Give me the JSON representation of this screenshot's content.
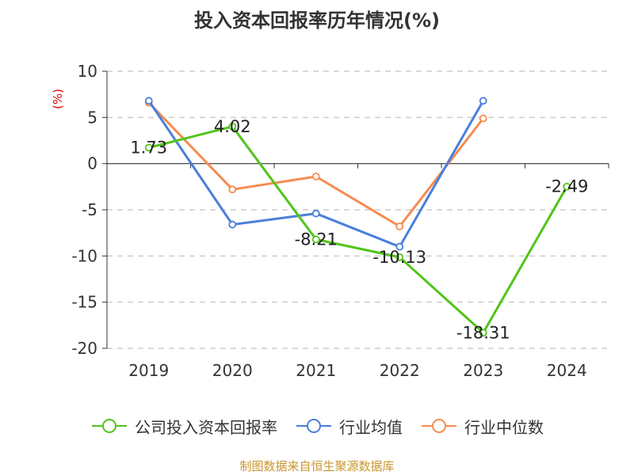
{
  "title": "投入资本回报率历年情况(%)",
  "source": "制图数据来自恒生聚源数据库",
  "chart_data": {
    "type": "line",
    "title": "投入资本回报率历年情况(%)",
    "ylabel": "(%)",
    "xlabel": "",
    "categories": [
      "2019",
      "2020",
      "2021",
      "2022",
      "2023",
      "2024"
    ],
    "ylim": [
      -20,
      10
    ],
    "yticks": [
      10,
      5,
      0,
      -5,
      -10,
      -15,
      -20
    ],
    "grid": true,
    "legend_position": "bottom",
    "series": [
      {
        "name": "公司投入资本回报率",
        "color": "#52c41a",
        "values": [
          1.73,
          4.02,
          -8.21,
          -10.13,
          -18.31,
          -2.49
        ],
        "show_labels": true
      },
      {
        "name": "行业均值",
        "color": "#4a7fdb",
        "values": [
          6.8,
          -6.6,
          -5.4,
          -9.0,
          6.8,
          null
        ],
        "show_labels": false
      },
      {
        "name": "行业中位数",
        "color": "#f78b4f",
        "values": [
          6.6,
          -2.8,
          -1.4,
          -6.8,
          4.9,
          null
        ],
        "show_labels": false
      }
    ]
  }
}
